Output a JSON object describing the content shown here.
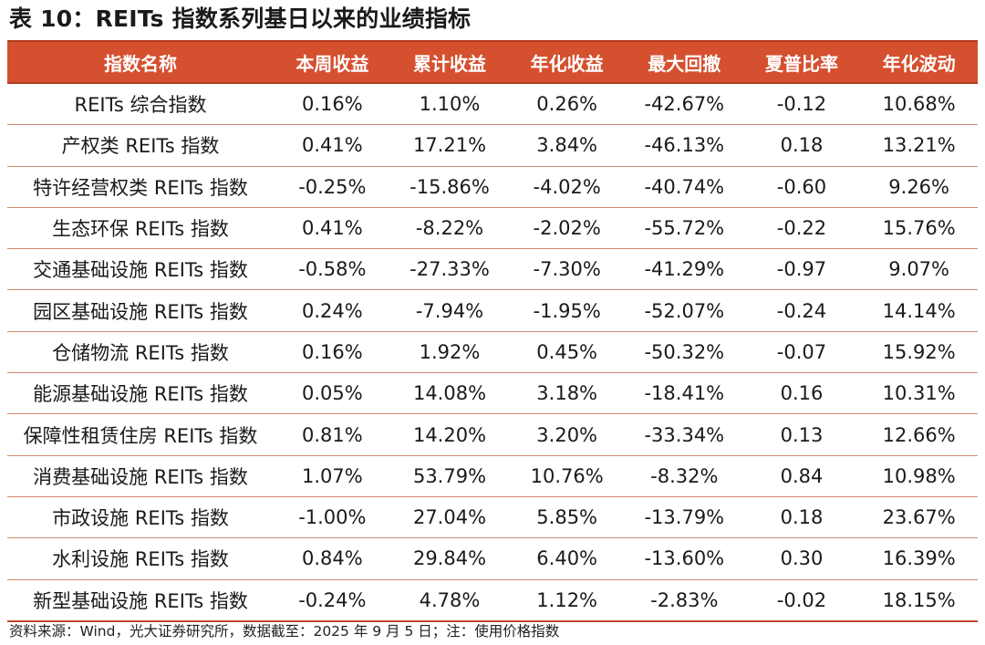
{
  "title": "表 10：REITs 指数系列基日以来的业绩指标",
  "table": {
    "headers": [
      "指数名称",
      "本周收益",
      "累计收益",
      "年化收益",
      "最大回撤",
      "夏普比率",
      "年化波动"
    ],
    "rows": [
      [
        "REITs 综合指数",
        "0.16%",
        "1.10%",
        "0.26%",
        "-42.67%",
        "-0.12",
        "10.68%"
      ],
      [
        "产权类 REITs 指数",
        "0.41%",
        "17.21%",
        "3.84%",
        "-46.13%",
        "0.18",
        "13.21%"
      ],
      [
        "特许经营权类 REITs 指数",
        "-0.25%",
        "-15.86%",
        "-4.02%",
        "-40.74%",
        "-0.60",
        "9.26%"
      ],
      [
        "生态环保 REITs 指数",
        "0.41%",
        "-8.22%",
        "-2.02%",
        "-55.72%",
        "-0.22",
        "15.76%"
      ],
      [
        "交通基础设施 REITs 指数",
        "-0.58%",
        "-27.33%",
        "-7.30%",
        "-41.29%",
        "-0.97",
        "9.07%"
      ],
      [
        "园区基础设施 REITs 指数",
        "0.24%",
        "-7.94%",
        "-1.95%",
        "-52.07%",
        "-0.24",
        "14.14%"
      ],
      [
        "仓储物流 REITs 指数",
        "0.16%",
        "1.92%",
        "0.45%",
        "-50.32%",
        "-0.07",
        "15.92%"
      ],
      [
        "能源基础设施 REITs 指数",
        "0.05%",
        "14.08%",
        "3.18%",
        "-18.41%",
        "0.16",
        "10.31%"
      ],
      [
        "保障性租赁住房 REITs 指数",
        "0.81%",
        "14.20%",
        "3.20%",
        "-33.34%",
        "0.13",
        "12.66%"
      ],
      [
        "消费基础设施 REITs 指数",
        "1.07%",
        "53.79%",
        "10.76%",
        "-8.32%",
        "0.84",
        "10.98%"
      ],
      [
        "市政设施 REITs 指数",
        "-1.00%",
        "27.04%",
        "5.85%",
        "-13.79%",
        "0.18",
        "23.67%"
      ],
      [
        "水利设施 REITs 指数",
        "0.84%",
        "29.84%",
        "6.40%",
        "-13.60%",
        "0.30",
        "16.39%"
      ],
      [
        "新型基础设施 REITs 指数",
        "-0.24%",
        "4.78%",
        "1.12%",
        "-2.83%",
        "-0.02",
        "18.15%"
      ]
    ]
  },
  "footer": "资料来源：Wind，光大证券研究所，数据截至：2025 年 9 月 5 日；注：使用价格指数",
  "colors": {
    "header_bg": "#d5502f",
    "row_divider": "#d4896f"
  }
}
